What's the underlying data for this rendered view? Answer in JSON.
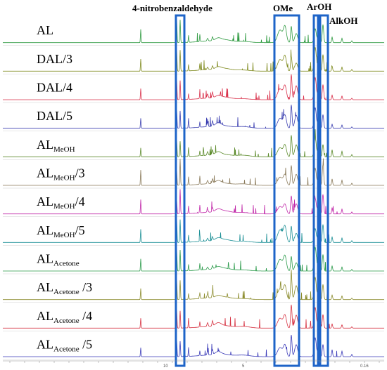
{
  "chart_data": {
    "type": "line",
    "x_axis": {
      "reversed": true,
      "tick_labels": [
        "10",
        "5",
        "0.16"
      ]
    },
    "region_labels": [
      "4-nitrobenzaldehyde",
      "OMe",
      "ArOH",
      "AlkOH"
    ],
    "series": [
      {
        "name": "AL",
        "label_main": "AL",
        "label_sub": "",
        "label_suffix": "",
        "color": "#2e9a40"
      },
      {
        "name": "DAL/3",
        "label_main": "DAL/3",
        "label_sub": "",
        "label_suffix": "",
        "color": "#7f8a1e"
      },
      {
        "name": "DAL/4",
        "label_main": "DAL/4",
        "label_sub": "",
        "label_suffix": "",
        "color": "#d9304a"
      },
      {
        "name": "DAL/5",
        "label_main": "DAL/5",
        "label_sub": "",
        "label_suffix": "",
        "color": "#3b3fb0"
      },
      {
        "name": "AL_MeOH",
        "label_main": "AL",
        "label_sub": "MeOH",
        "label_suffix": "",
        "color": "#5b8a2a"
      },
      {
        "name": "AL_MeOH/3",
        "label_main": "AL",
        "label_sub": "MeOH",
        "label_suffix": "/3",
        "color": "#8a7a5a"
      },
      {
        "name": "AL_MeOH/4",
        "label_main": "AL",
        "label_sub": "MeOH",
        "label_suffix": "/4",
        "color": "#c026a8"
      },
      {
        "name": "AL_MeOH/5",
        "label_main": "AL",
        "label_sub": "MeOH",
        "label_suffix": "/5",
        "color": "#1b8f95"
      },
      {
        "name": "AL_Acetone",
        "label_main": "AL",
        "label_sub": "Acetone",
        "label_suffix": "",
        "color": "#2a9a4a"
      },
      {
        "name": "AL_Acetone /3",
        "label_main": "AL",
        "label_sub": "Acetone",
        "label_suffix": " /3",
        "color": "#8a8a2a"
      },
      {
        "name": "AL_Acetone /4",
        "label_main": "AL",
        "label_sub": "Acetone",
        "label_suffix": " /4",
        "color": "#d63040"
      },
      {
        "name": "AL_Acetone /5",
        "label_main": "AL",
        "label_sub": "Acetone",
        "label_suffix": " /5",
        "color": "#3a3ab8"
      }
    ],
    "highlight_color": "#1e64c8"
  }
}
